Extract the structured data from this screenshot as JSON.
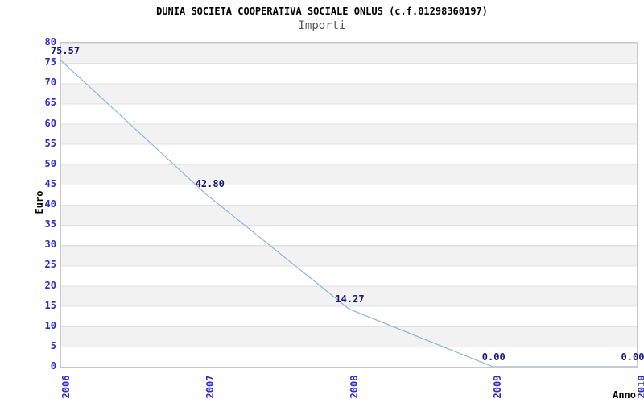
{
  "title": "DUNIA SOCIETA COOPERATIVA SOCIALE ONLUS (c.f.01298360197)",
  "subtitle": "Importi",
  "chart_data": {
    "type": "line",
    "x": [
      "2006",
      "2007",
      "2008",
      "2009",
      "2010"
    ],
    "series": [
      {
        "name": "Importi",
        "values": [
          75.57,
          42.8,
          14.27,
          0.0,
          0.0
        ]
      }
    ],
    "point_labels": [
      "75.57",
      "42.80",
      "14.27",
      "0.00",
      "0.00"
    ],
    "xlabel": "Anno",
    "ylabel": "Euro",
    "ylim": [
      0,
      80
    ],
    "ytick_step": 5,
    "yticks": [
      0,
      5,
      10,
      15,
      20,
      25,
      30,
      35,
      40,
      45,
      50,
      55,
      60,
      65,
      70,
      75,
      80
    ],
    "grid": "horizontal gridlines with alternating shaded bands",
    "legend_position": "none",
    "colors": {
      "line": "#8cb4e2",
      "tick_label": "#2b2bd2",
      "point_label": "#17177c",
      "band_gray": "#f2f2f2",
      "band_white": "#ffffff",
      "gridline": "#e0e0e0",
      "plot_border": "#c8c8c8",
      "title": "#000000",
      "subtitle": "#555555",
      "axis_title": "#000000"
    }
  }
}
